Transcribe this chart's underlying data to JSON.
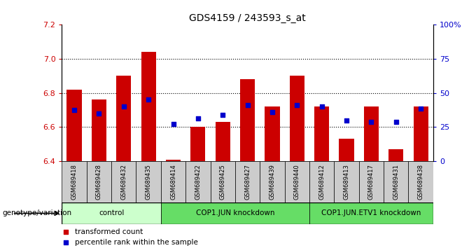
{
  "title": "GDS4159 / 243593_s_at",
  "samples": [
    "GSM689418",
    "GSM689428",
    "GSM689432",
    "GSM689435",
    "GSM689414",
    "GSM689422",
    "GSM689425",
    "GSM689427",
    "GSM689439",
    "GSM689440",
    "GSM689412",
    "GSM689413",
    "GSM689417",
    "GSM689431",
    "GSM689438"
  ],
  "bar_values": [
    6.82,
    6.76,
    6.9,
    7.04,
    6.41,
    6.6,
    6.63,
    6.88,
    6.72,
    6.9,
    6.72,
    6.53,
    6.72,
    6.47,
    6.72
  ],
  "percentile_values": [
    6.7,
    6.68,
    6.72,
    6.76,
    6.62,
    6.65,
    6.67,
    6.73,
    6.69,
    6.73,
    6.72,
    6.64,
    6.63,
    6.63,
    6.71
  ],
  "bar_base": 6.4,
  "ylim": [
    6.4,
    7.2
  ],
  "yticks": [
    6.4,
    6.6,
    6.8,
    7.0,
    7.2
  ],
  "right_yticks": [
    0,
    25,
    50,
    75,
    100
  ],
  "bar_color": "#cc0000",
  "percentile_color": "#0000cc",
  "groups": [
    {
      "label": "control",
      "start": 0,
      "end": 4,
      "color": "#ccffcc"
    },
    {
      "label": "COP1.JUN knockdown",
      "start": 4,
      "end": 10,
      "color": "#66dd66"
    },
    {
      "label": "COP1.JUN.ETV1 knockdown",
      "start": 10,
      "end": 15,
      "color": "#66dd66"
    }
  ],
  "bar_width": 0.6,
  "grid_color": "#000000",
  "left_tick_color": "#cc0000",
  "right_tick_color": "#0000cc",
  "sample_box_color": "#cccccc",
  "legend_red_label": "transformed count",
  "legend_blue_label": "percentile rank within the sample",
  "genotype_label": "genotype/variation"
}
